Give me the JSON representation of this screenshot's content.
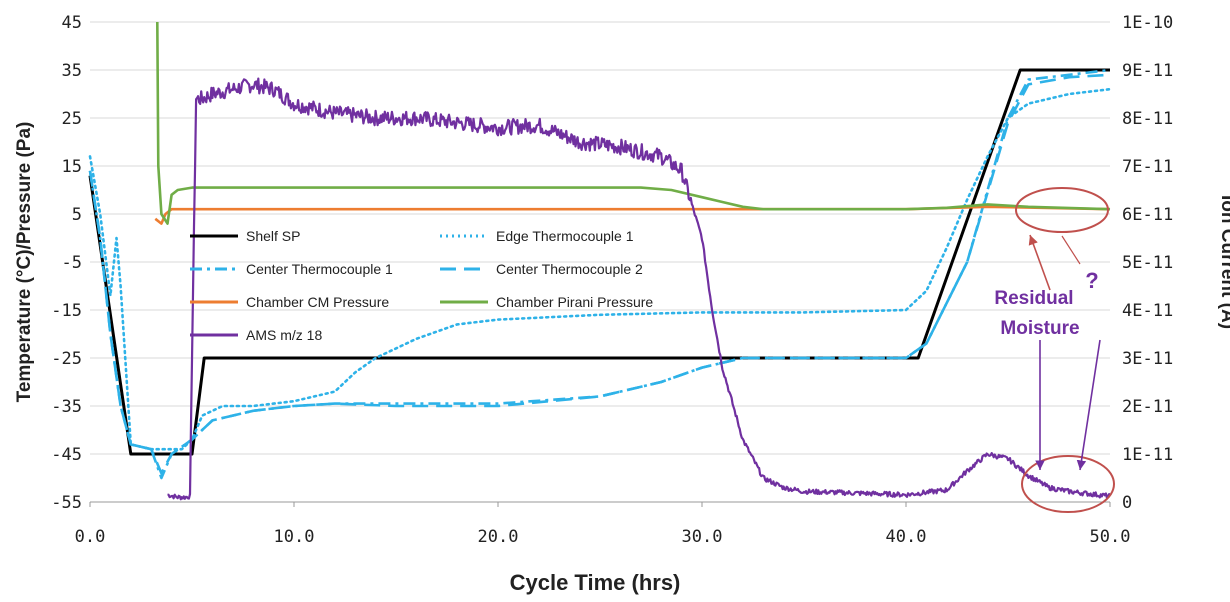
{
  "chart_data": {
    "type": "line",
    "xlabel": "Cycle Time (hrs)",
    "ylabel": "Temperature (°C)/Pressure (Pa)",
    "y2label": "Ion Current (A)",
    "xlim": [
      0,
      50
    ],
    "ylim": [
      -55,
      45
    ],
    "y2lim": [
      0,
      1e-10
    ],
    "x_ticks": [
      "0.0",
      "10.0",
      "20.0",
      "30.0",
      "40.0",
      "50.0"
    ],
    "y_ticks": [
      "45",
      "35",
      "25",
      "15",
      "5",
      "-5",
      "-15",
      "-25",
      "-35",
      "-45",
      "-55"
    ],
    "y2_ticks": [
      "1E-10",
      "9E-11",
      "8E-11",
      "7E-11",
      "6E-11",
      "5E-11",
      "4E-11",
      "3E-11",
      "2E-11",
      "1E-11",
      "0"
    ],
    "grid": true,
    "legend_position": "middle-left",
    "series": [
      {
        "name": "Shelf SP",
        "color": "#000000",
        "style": "solid",
        "axis": "left",
        "x": [
          0,
          2,
          5,
          5.6,
          40.6,
          45.6,
          50
        ],
        "y": [
          13,
          -45,
          -45,
          -25,
          -25,
          35,
          35
        ]
      },
      {
        "name": "Edge Thermocouple 1",
        "color": "#2eb2e8",
        "style": "dotted",
        "axis": "left",
        "x": [
          0,
          0.5,
          1.0,
          1.3,
          1.5,
          2.0,
          3.0,
          4.5,
          5.0,
          5.5,
          6.5,
          8.0,
          10.0,
          12.0,
          13.0,
          14.0,
          16.0,
          18.0,
          20.0,
          25.0,
          30.0,
          35.0,
          40.0,
          41.0,
          42.0,
          43.0,
          44.0,
          45.0,
          46.0,
          47.0,
          48.0,
          50.0
        ],
        "y": [
          17,
          5,
          -12,
          0,
          -10,
          -43,
          -44,
          -44,
          -42,
          -37,
          -35,
          -35,
          -34,
          -32,
          -28,
          -25,
          -21,
          -18,
          -17,
          -16,
          -15.5,
          -15.5,
          -15,
          -11,
          -2,
          8,
          17,
          25,
          28,
          29,
          30,
          31
        ]
      },
      {
        "name": "Center Thermocouple 1",
        "color": "#2eb2e8",
        "style": "dashdot",
        "axis": "left",
        "x": [
          0,
          0.5,
          1.0,
          1.5,
          2.0,
          3.0,
          3.5,
          4.0,
          5.0,
          6.0,
          8.0,
          10.0,
          12.0,
          15.0,
          20.0,
          25.0,
          28.0,
          30.0,
          32.0,
          35.0,
          40.0,
          41.0,
          43.0,
          45.0,
          46.0,
          48.0,
          50.0
        ],
        "y": [
          14,
          0,
          -20,
          -35,
          -43,
          -44,
          -50,
          -45,
          -42,
          -38,
          -36,
          -35,
          -34.5,
          -34.5,
          -34.5,
          -33,
          -30,
          -27,
          -25,
          -25,
          -25,
          -22,
          -5,
          25,
          33,
          34,
          35
        ]
      },
      {
        "name": "Center Thermocouple 2",
        "color": "#2eb2e8",
        "style": "dashed",
        "axis": "left",
        "x": [
          0,
          0.5,
          1.0,
          1.5,
          2.0,
          3.0,
          3.5,
          4.0,
          5.0,
          6.0,
          8.0,
          10.0,
          12.0,
          15.0,
          20.0,
          25.0,
          28.0,
          30.0,
          32.0,
          35.0,
          40.0,
          41.0,
          43.0,
          45.0,
          46.0,
          48.0,
          50.0
        ],
        "y": [
          14,
          0,
          -20,
          -35,
          -43,
          -44,
          -49,
          -45,
          -42,
          -38,
          -36,
          -35,
          -34.5,
          -35,
          -35,
          -33,
          -30,
          -27,
          -25,
          -25,
          -25,
          -22,
          -5,
          24,
          32,
          33.5,
          34
        ]
      },
      {
        "name": "Chamber CM Pressure",
        "color": "#ed7d31",
        "style": "solid",
        "axis": "left",
        "x": [
          3.2,
          3.5,
          3.7,
          4.0,
          10.0,
          20.0,
          30.0,
          40.0,
          44.0,
          50.0
        ],
        "y": [
          4,
          3,
          5,
          6,
          6,
          6,
          6,
          6,
          6.5,
          6
        ]
      },
      {
        "name": "Chamber Pirani Pressure",
        "color": "#70ad47",
        "style": "solid",
        "axis": "left",
        "x": [
          3.3,
          3.35,
          3.5,
          3.8,
          4.0,
          4.3,
          5.0,
          10.0,
          20.0,
          27.0,
          28.5,
          30.0,
          31.0,
          32.0,
          33.0,
          35.0,
          40.0,
          42.0,
          44.0,
          46.0,
          50.0
        ],
        "y": [
          45,
          15,
          5,
          3,
          9,
          10,
          10.5,
          10.5,
          10.5,
          10.5,
          10,
          8.5,
          7.5,
          6.5,
          6,
          6,
          6,
          6.3,
          7,
          6.5,
          6
        ]
      },
      {
        "name": "AMS m/z 18",
        "color": "#7030a0",
        "style": "solid",
        "axis": "right",
        "x": [
          3.8,
          4.3,
          4.7,
          4.9,
          5.0,
          5.2,
          5.5,
          6.0,
          7.0,
          8.0,
          9.0,
          10.0,
          12.0,
          14.0,
          16.0,
          18.0,
          20.0,
          22.0,
          24.0,
          26.0,
          28.0,
          29.0,
          30.0,
          30.5,
          31.0,
          32.0,
          33.0,
          34.0,
          35.0,
          38.0,
          40.0,
          42.0,
          43.0,
          44.0,
          45.0,
          46.0,
          47.0,
          48.0,
          50.0
        ],
        "y": [
          1.5e-12,
          1e-12,
          1e-12,
          1.2e-12,
          3e-11,
          8.4e-11,
          8.4e-11,
          8.5e-11,
          8.6e-11,
          8.7e-11,
          8.6e-11,
          8.3e-11,
          8.1e-11,
          8e-11,
          8e-11,
          7.9e-11,
          7.8e-11,
          7.85e-11,
          7.5e-11,
          7.4e-11,
          7.2e-11,
          6.9e-11,
          5.5e-11,
          4e-11,
          2.8e-11,
          1.3e-11,
          5e-12,
          3e-12,
          2.2e-12,
          1.8e-12,
          1.5e-12,
          2.5e-12,
          6.5e-12,
          1e-11,
          9e-12,
          5.5e-12,
          3e-12,
          2.2e-12,
          1.2e-12
        ]
      }
    ],
    "annotations": {
      "residual": "Residual\nMoisture",
      "question": "?"
    }
  }
}
